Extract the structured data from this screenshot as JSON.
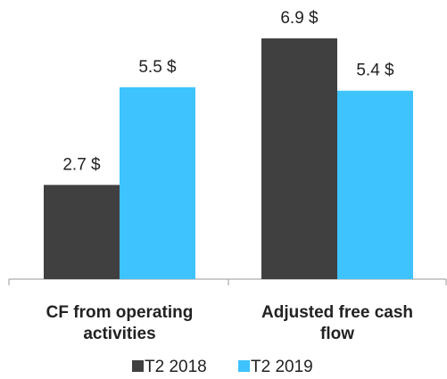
{
  "chart_data": {
    "type": "bar",
    "categories": [
      "CF from operating activities",
      "Adjusted free cash flow"
    ],
    "series": [
      {
        "name": "T2 2018",
        "color": "#404040",
        "values": [
          2.7,
          6.9
        ],
        "value_labels": [
          "2.7 $",
          "6.9 $"
        ]
      },
      {
        "name": "T2 2019",
        "color": "#3ec3ff",
        "values": [
          5.5,
          5.4
        ],
        "value_labels": [
          "5.5 $",
          "5.4 $"
        ]
      }
    ],
    "ylim": [
      0,
      8
    ],
    "grid": false,
    "legend": "bottom"
  }
}
